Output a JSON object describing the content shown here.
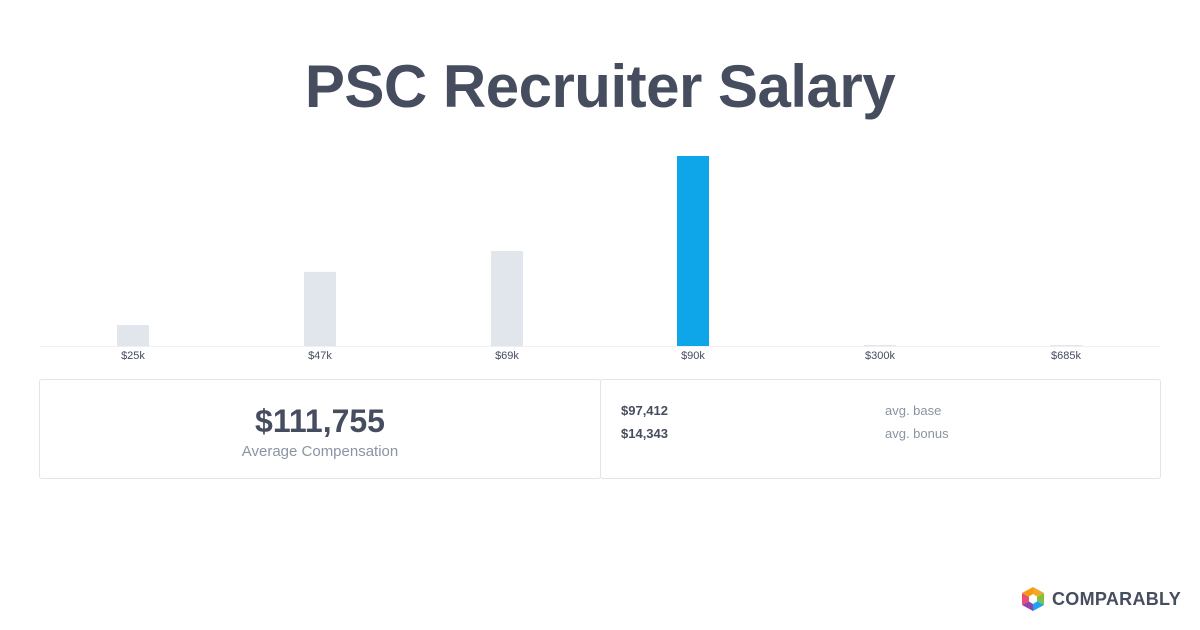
{
  "title": "PSC Recruiter Salary",
  "chart_data": {
    "type": "bar",
    "categories": [
      "$25k",
      "$47k",
      "$69k",
      "$90k",
      "$300k",
      "$685k"
    ],
    "values": [
      22,
      78,
      100,
      200,
      1,
      1
    ],
    "highlight_index": 3,
    "colors": {
      "bar": "#e1e6ed",
      "highlight": "#0ea5e9",
      "axis": "#eef0f3",
      "tick_text": "#454d5e"
    },
    "grid": false
  },
  "summary": {
    "average_value": "$111,755",
    "average_label": "Average Compensation",
    "rows": [
      {
        "value": "$97,412",
        "label": "avg. base"
      },
      {
        "value": "$14,343",
        "label": "avg. bonus"
      }
    ]
  },
  "brand": {
    "name": "COMPARABLY",
    "icon": "comparably-logo-icon",
    "colors": [
      "#f5a623",
      "#7cc243",
      "#1da1f2",
      "#e94e77",
      "#8e44ad"
    ]
  }
}
